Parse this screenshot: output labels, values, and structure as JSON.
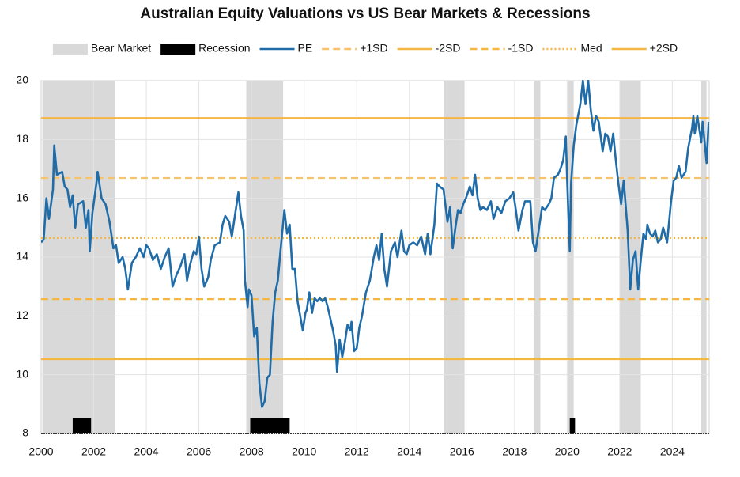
{
  "chart_data": {
    "type": "line",
    "title": "Australian Equity Valuations vs US Bear Markets & Recessions",
    "xlim": [
      2000,
      2025.4
    ],
    "xticks": [
      2000,
      2002,
      2004,
      2006,
      2008,
      2010,
      2012,
      2014,
      2016,
      2018,
      2020,
      2022,
      2024
    ],
    "ylim": [
      8,
      20
    ],
    "yticks": [
      8,
      10,
      12,
      14,
      16,
      18,
      20
    ],
    "grid": true,
    "series": [
      {
        "name": "Bear Market",
        "kind": "band",
        "color": "#d9d9d9",
        "start": [
          2000.05,
          2007.8,
          2015.3,
          2018.75,
          2020.05,
          2022.0,
          2025.1
        ],
        "end": [
          2002.8,
          2009.2,
          2016.1,
          2018.98,
          2020.25,
          2022.8,
          2025.3
        ]
      },
      {
        "name": "Recession",
        "kind": "bar-band",
        "color": "#000000",
        "start": [
          2001.2,
          2007.95,
          2020.1
        ],
        "end": [
          2001.9,
          2009.45,
          2020.3
        ]
      },
      {
        "name": "PE",
        "kind": "line",
        "color": "#1f6ca8",
        "x": [
          2000.0,
          2000.1,
          2000.2,
          2000.3,
          2000.45,
          2000.5,
          2000.6,
          2000.8,
          2000.9,
          2001.0,
          2001.1,
          2001.2,
          2001.3,
          2001.4,
          2001.6,
          2001.7,
          2001.8,
          2001.85,
          2001.95,
          2002.1,
          2002.15,
          2002.3,
          2002.45,
          2002.6,
          2002.75,
          2002.85,
          2002.95,
          2003.1,
          2003.2,
          2003.3,
          2003.45,
          2003.6,
          2003.75,
          2003.9,
          2004.0,
          2004.1,
          2004.25,
          2004.4,
          2004.55,
          2004.7,
          2004.85,
          2005.0,
          2005.15,
          2005.3,
          2005.45,
          2005.55,
          2005.65,
          2005.8,
          2005.9,
          2006.0,
          2006.1,
          2006.2,
          2006.35,
          2006.45,
          2006.6,
          2006.8,
          2006.9,
          2007.0,
          2007.15,
          2007.25,
          2007.4,
          2007.5,
          2007.6,
          2007.7,
          2007.75,
          2007.85,
          2007.9,
          2008.0,
          2008.1,
          2008.2,
          2008.3,
          2008.4,
          2008.5,
          2008.6,
          2008.7,
          2008.8,
          2008.9,
          2009.0,
          2009.1,
          2009.25,
          2009.35,
          2009.45,
          2009.55,
          2009.65,
          2009.75,
          2009.85,
          2009.95,
          2010.05,
          2010.1,
          2010.2,
          2010.3,
          2010.4,
          2010.5,
          2010.6,
          2010.7,
          2010.8,
          2010.9,
          2011.0,
          2011.1,
          2011.2,
          2011.25,
          2011.35,
          2011.45,
          2011.55,
          2011.65,
          2011.75,
          2011.8,
          2011.9,
          2012.0,
          2012.1,
          2012.2,
          2012.35,
          2012.5,
          2012.65,
          2012.75,
          2012.85,
          2012.95,
          2013.05,
          2013.15,
          2013.3,
          2013.45,
          2013.55,
          2013.7,
          2013.8,
          2013.9,
          2014.0,
          2014.15,
          2014.3,
          2014.45,
          2014.6,
          2014.7,
          2014.8,
          2014.95,
          2015.05,
          2015.15,
          2015.3,
          2015.45,
          2015.55,
          2015.65,
          2015.75,
          2015.85,
          2015.95,
          2016.05,
          2016.15,
          2016.3,
          2016.4,
          2016.5,
          2016.6,
          2016.7,
          2016.8,
          2016.95,
          2017.1,
          2017.2,
          2017.35,
          2017.5,
          2017.65,
          2017.8,
          2017.95,
          2018.05,
          2018.15,
          2018.3,
          2018.4,
          2018.5,
          2018.6,
          2018.7,
          2018.8,
          2018.95,
          2019.05,
          2019.15,
          2019.3,
          2019.4,
          2019.5,
          2019.65,
          2019.75,
          2019.85,
          2019.95,
          2020.0,
          2020.1,
          2020.15,
          2020.25,
          2020.35,
          2020.5,
          2020.6,
          2020.7,
          2020.8,
          2020.9,
          2021.0,
          2021.1,
          2021.2,
          2021.35,
          2021.45,
          2021.55,
          2021.65,
          2021.75,
          2021.85,
          2021.95,
          2022.05,
          2022.15,
          2022.3,
          2022.4,
          2022.5,
          2022.6,
          2022.7,
          2022.8,
          2022.9,
          2023.0,
          2023.05,
          2023.15,
          2023.25,
          2023.35,
          2023.45,
          2023.55,
          2023.65,
          2023.8,
          2023.95,
          2024.05,
          2024.15,
          2024.25,
          2024.35,
          2024.5,
          2024.6,
          2024.75,
          2024.8,
          2024.85,
          2024.95,
          2025.05,
          2025.1,
          2025.15,
          2025.25,
          2025.3,
          2025.38
        ],
        "values": [
          14.5,
          14.6,
          16.0,
          15.3,
          16.3,
          17.8,
          16.8,
          16.9,
          16.4,
          16.3,
          15.7,
          16.1,
          15.0,
          15.8,
          15.9,
          15.0,
          15.6,
          14.2,
          15.5,
          16.5,
          16.9,
          16.0,
          15.8,
          15.2,
          14.3,
          14.4,
          13.8,
          14.0,
          13.6,
          12.9,
          13.8,
          14.0,
          14.3,
          14.0,
          14.4,
          14.3,
          13.9,
          14.1,
          13.6,
          14.0,
          14.3,
          13.0,
          13.4,
          13.7,
          14.1,
          13.2,
          13.7,
          14.2,
          14.1,
          14.7,
          13.6,
          13.0,
          13.3,
          13.9,
          14.4,
          14.5,
          15.1,
          15.4,
          15.2,
          14.7,
          15.6,
          16.2,
          15.4,
          14.9,
          13.2,
          12.3,
          12.9,
          12.7,
          11.3,
          11.6,
          9.7,
          8.9,
          9.1,
          9.9,
          10.0,
          11.8,
          12.8,
          13.2,
          14.2,
          15.6,
          14.8,
          15.1,
          13.6,
          13.6,
          12.5,
          12.0,
          11.5,
          12.1,
          12.2,
          12.8,
          12.1,
          12.6,
          12.5,
          12.6,
          12.5,
          12.6,
          12.3,
          11.9,
          11.5,
          11.0,
          10.1,
          11.2,
          10.6,
          11.1,
          11.7,
          11.5,
          11.8,
          10.8,
          10.9,
          11.6,
          12.0,
          12.8,
          13.2,
          14.0,
          14.4,
          13.9,
          14.8,
          13.6,
          13.0,
          14.2,
          14.5,
          14.0,
          14.9,
          14.2,
          14.1,
          14.4,
          14.5,
          14.4,
          14.7,
          14.1,
          14.8,
          14.1,
          15.1,
          16.5,
          16.4,
          16.3,
          15.2,
          15.7,
          14.3,
          15.0,
          15.6,
          15.5,
          15.8,
          16.0,
          16.4,
          16.1,
          16.8,
          16.0,
          15.6,
          15.7,
          15.6,
          15.9,
          15.3,
          15.7,
          15.5,
          15.9,
          16.0,
          16.2,
          15.6,
          14.9,
          15.6,
          15.9,
          15.9,
          15.9,
          14.5,
          14.2,
          15.1,
          15.7,
          15.6,
          15.8,
          16.0,
          16.7,
          16.8,
          17.0,
          17.3,
          18.1,
          16.6,
          14.2,
          16.5,
          17.8,
          18.5,
          19.2,
          20.0,
          19.2,
          20.0,
          19.0,
          18.3,
          18.8,
          18.6,
          17.6,
          18.2,
          18.1,
          17.6,
          18.2,
          17.3,
          16.5,
          15.8,
          16.6,
          14.9,
          12.9,
          13.9,
          14.2,
          12.9,
          13.9,
          14.8,
          14.6,
          15.1,
          14.8,
          14.7,
          14.9,
          14.5,
          14.6,
          15.0,
          14.5,
          15.9,
          16.6,
          16.7,
          17.1,
          16.7,
          16.9,
          17.7,
          18.4,
          18.8,
          18.2,
          18.8,
          18.2,
          17.9,
          18.6,
          17.7,
          17.2,
          18.6
        ]
      },
      {
        "name": "+1SD",
        "kind": "hline",
        "style": "dashed",
        "color": "#f7c26b",
        "value": 16.69
      },
      {
        "name": "-2SD",
        "kind": "hline",
        "style": "solid",
        "color": "#f5b642",
        "value": 10.53
      },
      {
        "name": "-1SD",
        "kind": "hline",
        "style": "dashed",
        "color": "#f5b642",
        "value": 12.57
      },
      {
        "name": "Med",
        "kind": "hline",
        "style": "dotted",
        "color": "#f5b642",
        "value": 14.65
      },
      {
        "name": "+2SD",
        "kind": "hline",
        "style": "solid",
        "color": "#f5b642",
        "value": 18.73
      }
    ]
  }
}
